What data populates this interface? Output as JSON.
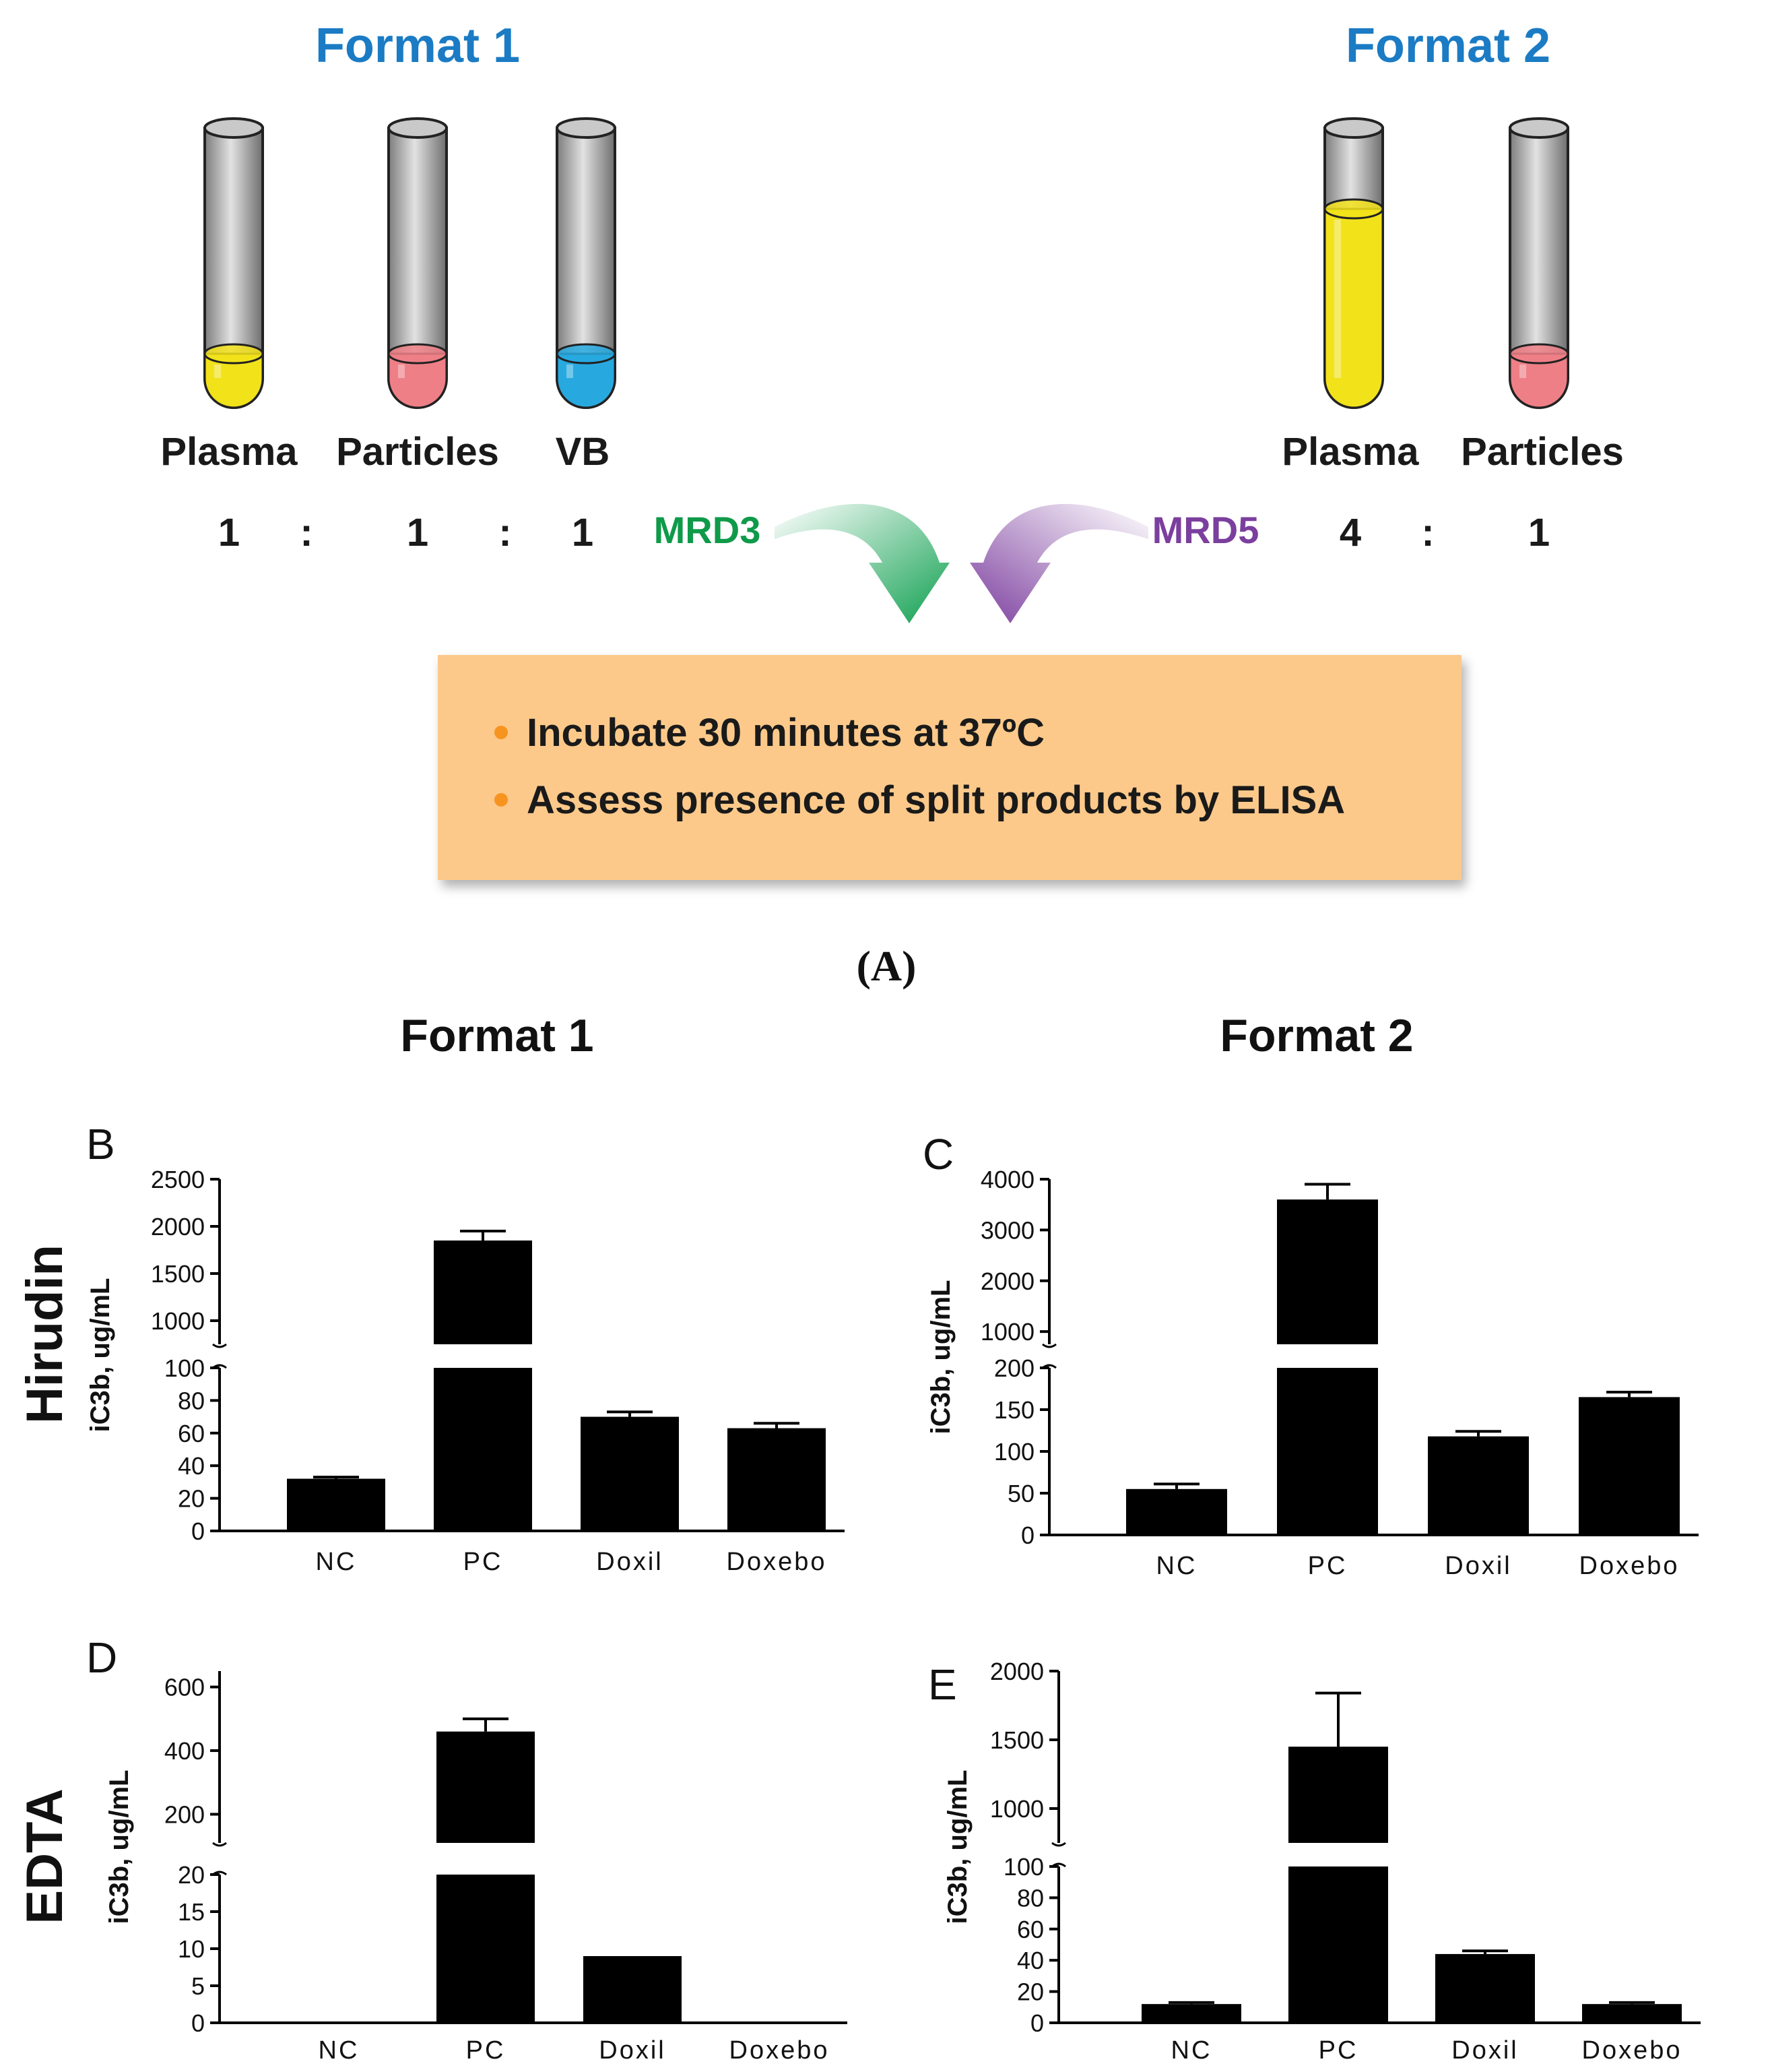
{
  "panelA": {
    "format1_title": "Format 1",
    "format2_title": "Format 2",
    "format1_tubes": [
      {
        "label": "Plasma",
        "color": "#f2e21a",
        "ratio": "1"
      },
      {
        "label": "Particles",
        "color": "#ef7f86",
        "ratio": "1"
      },
      {
        "label": "VB",
        "color": "#27a9df",
        "ratio": "1"
      }
    ],
    "format2_tubes": [
      {
        "label": "Plasma",
        "color": "#f2e21a",
        "ratio": "4"
      },
      {
        "label": "Particles",
        "color": "#ef7f86",
        "ratio": "1"
      }
    ],
    "ratio_sep": ":",
    "mrd3": "MRD3",
    "mrd5": "MRD5",
    "steps": [
      "Incubate 30 minutes at 37ºC",
      "Assess presence of split products by ELISA"
    ],
    "caption": "(A)",
    "colors": {
      "title": "#1b7bc4",
      "mrd3": "#0f9a4a",
      "mrd5": "#7b3f9e",
      "box": "#fcc98a",
      "bullet": "#f79420"
    }
  },
  "panel_headers": {
    "format1": "Format 1",
    "format2": "Format 2",
    "row1": "Hirudin",
    "row2": "EDTA"
  },
  "chart_data": [
    {
      "panel": "B",
      "type": "bar",
      "ylabel": "iC3b, ug/mL",
      "categories": [
        "NC",
        "PC",
        "Doxil",
        "Doxebo"
      ],
      "values": [
        32,
        1850,
        70,
        63
      ],
      "errors": [
        1,
        100,
        3,
        3
      ],
      "axis_break": true,
      "lower_ylim": [
        0,
        100
      ],
      "lower_ticks": [
        0,
        20,
        40,
        60,
        80,
        100
      ],
      "upper_ylim": [
        750,
        2500
      ],
      "upper_ticks": [
        1000,
        1500,
        2000,
        2500
      ]
    },
    {
      "panel": "C",
      "type": "bar",
      "ylabel": "iC3b, ug/mL",
      "categories": [
        "NC",
        "PC",
        "Doxil",
        "Doxebo"
      ],
      "values": [
        55,
        3600,
        118,
        165
      ],
      "errors": [
        6,
        300,
        6,
        6
      ],
      "axis_break": true,
      "lower_ylim": [
        0,
        200
      ],
      "lower_ticks": [
        0,
        50,
        100,
        150,
        200
      ],
      "upper_ylim": [
        750,
        4000
      ],
      "upper_ticks": [
        1000,
        2000,
        3000,
        4000
      ]
    },
    {
      "panel": "D",
      "type": "bar",
      "ylabel": "iC3b, ug/mL",
      "categories": [
        "NC",
        "PC",
        "Doxil",
        "Doxebo"
      ],
      "values": [
        0,
        460,
        9,
        0
      ],
      "errors": [
        0,
        40,
        0,
        0
      ],
      "axis_break": true,
      "lower_ylim": [
        0,
        20
      ],
      "lower_ticks": [
        0,
        5,
        10,
        15,
        20
      ],
      "upper_ylim": [
        110,
        650
      ],
      "upper_ticks": [
        200,
        400,
        600
      ]
    },
    {
      "panel": "E",
      "type": "bar",
      "ylabel": "iC3b, ug/mL",
      "categories": [
        "NC",
        "PC",
        "Doxil",
        "Doxebo"
      ],
      "values": [
        12,
        1450,
        44,
        12
      ],
      "errors": [
        1,
        390,
        2,
        1
      ],
      "axis_break": true,
      "lower_ylim": [
        0,
        100
      ],
      "lower_ticks": [
        0,
        20,
        40,
        60,
        80,
        100
      ],
      "upper_ylim": [
        750,
        2000
      ],
      "upper_ticks": [
        1000,
        1500,
        2000
      ]
    }
  ]
}
